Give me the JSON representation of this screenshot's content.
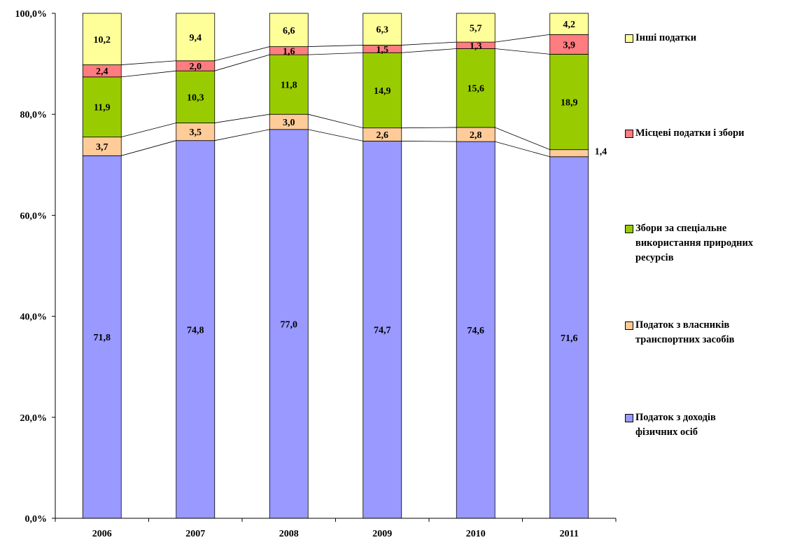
{
  "chart_data": {
    "type": "bar",
    "stacked": true,
    "percent": true,
    "categories": [
      "2006",
      "2007",
      "2008",
      "2009",
      "2010",
      "2011"
    ],
    "ylim": [
      0,
      100
    ],
    "yticks": [
      "0,0%",
      "20,0%",
      "40,0%",
      "60,0%",
      "80,0%",
      "100,0%"
    ],
    "series_lines": true,
    "legend_position": "right",
    "series": [
      {
        "name": "Податок з доходів фізичних осіб",
        "color": "#9999ff",
        "values": [
          71.8,
          74.8,
          77.0,
          74.7,
          74.6,
          71.6
        ],
        "labels": [
          "71,8",
          "74,8",
          "77,0",
          "74,7",
          "74,6",
          "71,6"
        ]
      },
      {
        "name": "Податок з власників транспортних засобів",
        "color": "#ffcc99",
        "values": [
          3.7,
          3.5,
          3.0,
          2.6,
          2.8,
          1.4
        ],
        "labels": [
          "3,7",
          "3,5",
          "3,0",
          "2,6",
          "2,8",
          "1,4"
        ]
      },
      {
        "name": "Збори за спеціальне використання природних ресурсів",
        "color": "#99cc00",
        "values": [
          11.9,
          10.3,
          11.8,
          14.9,
          15.6,
          18.9
        ],
        "labels": [
          "11,9",
          "10,3",
          "11,8",
          "14,9",
          "15,6",
          "18,9"
        ]
      },
      {
        "name": "Місцеві податки і збори",
        "color": "#ff7c80",
        "values": [
          2.4,
          2.0,
          1.6,
          1.5,
          1.3,
          3.9
        ],
        "labels": [
          "2,4",
          "2,0",
          "1,6",
          "1,5",
          "1,3",
          "3,9"
        ]
      },
      {
        "name": "Інші податки",
        "color": "#ffff99",
        "values": [
          10.2,
          9.4,
          6.6,
          6.3,
          5.7,
          4.2
        ],
        "labels": [
          "10,2",
          "9,4",
          "6,6",
          "6,3",
          "5,7",
          "4,2"
        ]
      }
    ]
  },
  "legend": [
    {
      "color": "#ffff99",
      "lines": [
        "Інші податки"
      ]
    },
    {
      "color": "#ff7c80",
      "lines": [
        "Місцеві податки і збори"
      ]
    },
    {
      "color": "#99cc00",
      "lines": [
        "Збори за спеціальне",
        "використання природних",
        "ресурсів"
      ]
    },
    {
      "color": "#ffcc99",
      "lines": [
        "Податок з власників",
        "транспортних засобів"
      ]
    },
    {
      "color": "#9999ff",
      "lines": [
        "Податок з доходів",
        "фізичних осіб"
      ]
    }
  ]
}
